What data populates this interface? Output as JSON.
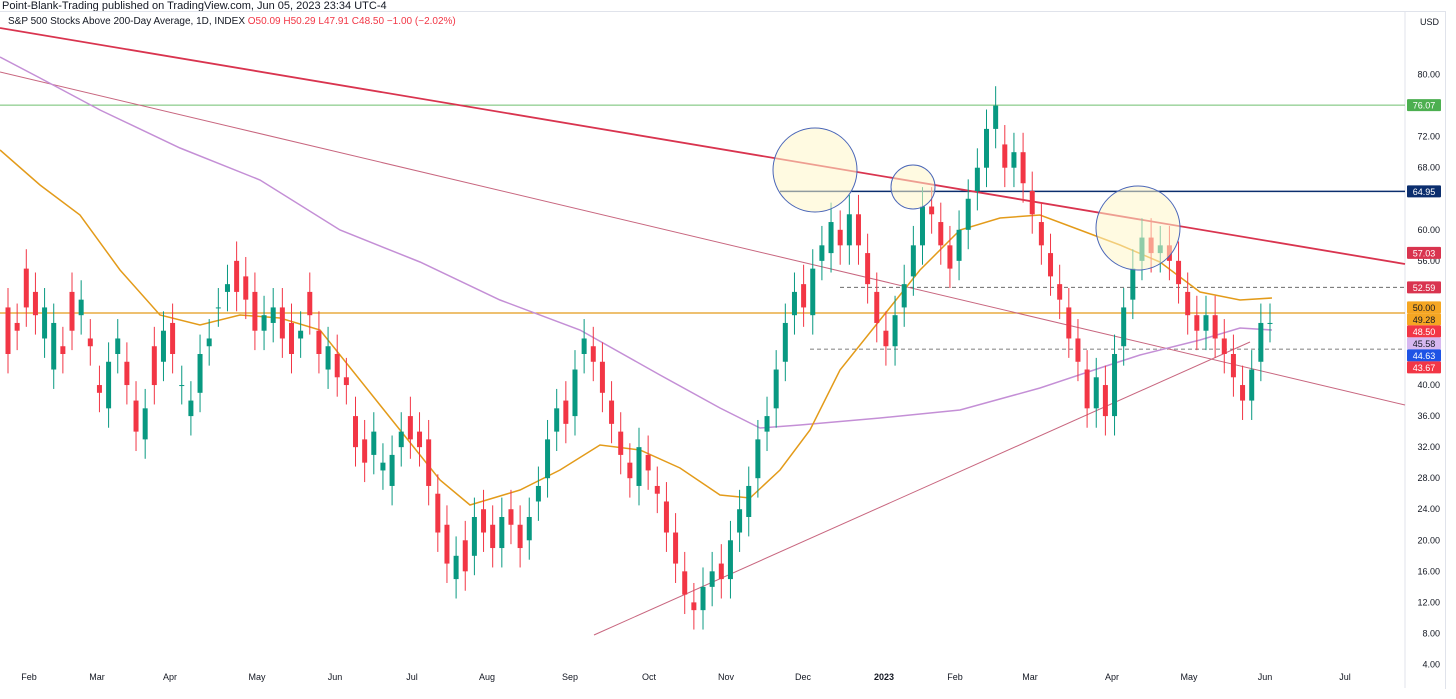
{
  "header": {
    "publisher": "Point-Blank-Trading published on TradingView.com, Jun 05, 2023 23:34 UTC-4"
  },
  "legend": {
    "symbol": "S&P 500 Stocks Above 200-Day Average, 1D, INDEX",
    "o": "O50.09",
    "h": "H50.29",
    "l": "L47.91",
    "c": "C48.50",
    "change": "−1.00 (−2.02%)"
  },
  "axis": {
    "currency": "USD"
  },
  "colors": {
    "up": "#089981",
    "down": "#f23645",
    "ma50": "#e39b1a",
    "ma200": "#c48fd6",
    "resistance": "#d9344f",
    "trend": "#c8667f",
    "hline76": "#6fbf6f",
    "hline65": "#0b2e6e",
    "circle": "#4a66b8"
  },
  "chart_data": {
    "type": "candlestick",
    "ylim": [
      2.0,
      86.0
    ],
    "y_ticks": [
      "80.00",
      "72.00",
      "68.00",
      "60.00",
      "56.00",
      "40.00",
      "36.00",
      "32.00",
      "28.00",
      "24.00",
      "20.00",
      "16.00",
      "12.00",
      "8.00",
      "4.00"
    ],
    "x_ticks": [
      "Feb",
      "Mar",
      "Apr",
      "May",
      "Jun",
      "Jul",
      "Aug",
      "Sep",
      "Oct",
      "Nov",
      "Dec",
      "2023",
      "Feb",
      "Mar",
      "Apr",
      "May",
      "Jun",
      "Jul"
    ],
    "x_range": [
      "2022-01-27",
      "2023-07-20"
    ],
    "price_labels": [
      {
        "text": "76.07",
        "value": 76.07,
        "bg": "#4caf50"
      },
      {
        "text": "64.95",
        "value": 64.95,
        "bg": "#0b2e6e"
      },
      {
        "text": "57.03",
        "value": 57.03,
        "bg": "#d9344f"
      },
      {
        "text": "52.59",
        "value": 52.59,
        "bg": "#d9344f"
      },
      {
        "text": "50.00",
        "value": 50.0,
        "bg": "#f5a623",
        "fg": "#131722"
      },
      {
        "text": "49.28",
        "value": 49.28,
        "bg": "#f5a623",
        "fg": "#131722"
      },
      {
        "text": "48.50",
        "value": 48.5,
        "bg": "#f23645"
      },
      {
        "text": "45.58",
        "value": 45.58,
        "bg": "#d7b8f0",
        "fg": "#131722"
      },
      {
        "text": "44.63",
        "value": 44.63,
        "bg": "#1e53e5"
      },
      {
        "text": "43.67",
        "value": 43.67,
        "bg": "#f23645"
      }
    ],
    "levels": {
      "peak": 76.07,
      "resistance_h": 64.95,
      "orange_h": 49.28,
      "dashed_upper": 52.59,
      "dashed_lower": 44.63
    },
    "close": [
      [
        50,
        44
      ],
      [
        48,
        47
      ],
      [
        55,
        50
      ],
      [
        52,
        49
      ],
      [
        46,
        50
      ],
      [
        42,
        48
      ],
      [
        45,
        44
      ],
      [
        52,
        47
      ],
      [
        49,
        51
      ],
      [
        46,
        45
      ],
      [
        40,
        39
      ],
      [
        37,
        43
      ],
      [
        44,
        46
      ],
      [
        43,
        40
      ],
      [
        38,
        34
      ],
      [
        33,
        37
      ],
      [
        45,
        40
      ],
      [
        43,
        47
      ],
      [
        48,
        44
      ],
      [
        40,
        40
      ],
      [
        36,
        38
      ],
      [
        39,
        44
      ],
      [
        45,
        46
      ],
      [
        50,
        50
      ],
      [
        52,
        53
      ],
      [
        56,
        52
      ],
      [
        54,
        51
      ],
      [
        52,
        47
      ],
      [
        47,
        49
      ],
      [
        48,
        50
      ],
      [
        50,
        46
      ],
      [
        48,
        44
      ],
      [
        46,
        47
      ],
      [
        52,
        49
      ],
      [
        47,
        44
      ],
      [
        42,
        45
      ],
      [
        44,
        41
      ],
      [
        41,
        40
      ],
      [
        36,
        32
      ],
      [
        33,
        30
      ],
      [
        31,
        34
      ],
      [
        29,
        30
      ],
      [
        27,
        31
      ],
      [
        32,
        34
      ],
      [
        36,
        33
      ],
      [
        34,
        32
      ],
      [
        33,
        27
      ],
      [
        26,
        21
      ],
      [
        22,
        17
      ],
      [
        15,
        18
      ],
      [
        20,
        16
      ],
      [
        18,
        23
      ],
      [
        24,
        21
      ],
      [
        22,
        19
      ],
      [
        19,
        23
      ],
      [
        24,
        22
      ],
      [
        22,
        19
      ],
      [
        20,
        23
      ],
      [
        25,
        27
      ],
      [
        28,
        33
      ],
      [
        34,
        37
      ],
      [
        38,
        35
      ],
      [
        36,
        42
      ],
      [
        44,
        46
      ],
      [
        45,
        43
      ],
      [
        43,
        39
      ],
      [
        38,
        35
      ],
      [
        34,
        31
      ],
      [
        30,
        28
      ],
      [
        27,
        32
      ],
      [
        31,
        29
      ],
      [
        27,
        26
      ],
      [
        25,
        21
      ],
      [
        21,
        17
      ],
      [
        16,
        13
      ],
      [
        12,
        11
      ],
      [
        11,
        14
      ],
      [
        14,
        16
      ],
      [
        17,
        15
      ],
      [
        15,
        20
      ],
      [
        21,
        24
      ],
      [
        23,
        27
      ],
      [
        28,
        33
      ],
      [
        34,
        36
      ],
      [
        37,
        42
      ],
      [
        43,
        48
      ],
      [
        49,
        52
      ],
      [
        53,
        50
      ],
      [
        49,
        55
      ],
      [
        56,
        58
      ],
      [
        57,
        61
      ],
      [
        60,
        58
      ],
      [
        58,
        62
      ],
      [
        62,
        58
      ],
      [
        57,
        53
      ],
      [
        52,
        48
      ],
      [
        47,
        45
      ],
      [
        45,
        49
      ],
      [
        50,
        53
      ],
      [
        54,
        58
      ],
      [
        58,
        63
      ],
      [
        63,
        62
      ],
      [
        61,
        58
      ],
      [
        58,
        55
      ],
      [
        56,
        60
      ],
      [
        60,
        64
      ],
      [
        65,
        68
      ],
      [
        68,
        73
      ],
      [
        73,
        76
      ],
      [
        71,
        68
      ],
      [
        68,
        70
      ],
      [
        70,
        66
      ],
      [
        65,
        62
      ],
      [
        61,
        58
      ],
      [
        57,
        54
      ],
      [
        53,
        51
      ],
      [
        50,
        46
      ],
      [
        46,
        43
      ],
      [
        42,
        37
      ],
      [
        37,
        41
      ],
      [
        40,
        36
      ],
      [
        36,
        44
      ],
      [
        45,
        50
      ],
      [
        51,
        55
      ],
      [
        56,
        59
      ],
      [
        59,
        57
      ],
      [
        57,
        58
      ],
      [
        58,
        56
      ],
      [
        56,
        53
      ],
      [
        52,
        49
      ],
      [
        49,
        47
      ],
      [
        47,
        49
      ],
      [
        49,
        46
      ],
      [
        46,
        44
      ],
      [
        44,
        41
      ],
      [
        40,
        38
      ],
      [
        38,
        42
      ],
      [
        43,
        48
      ],
      [
        48,
        48
      ]
    ]
  }
}
